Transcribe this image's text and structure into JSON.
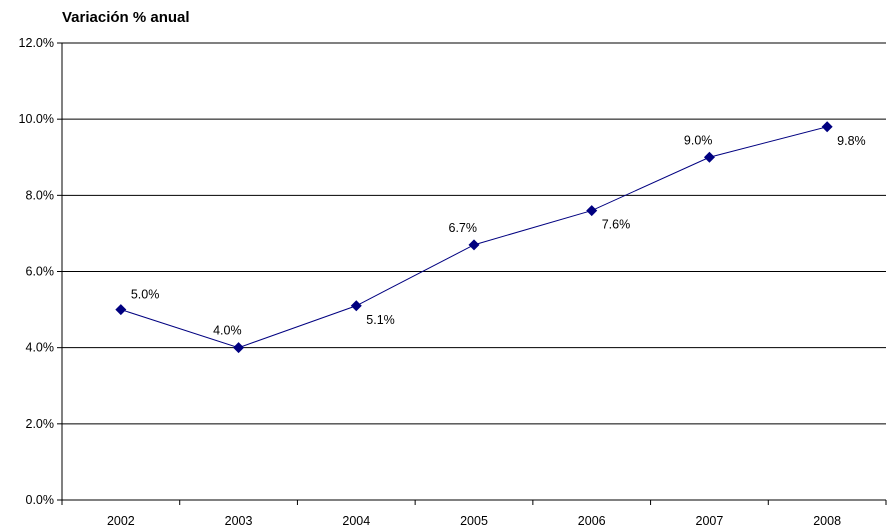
{
  "chart_data": {
    "type": "line",
    "title": "Variación % anual",
    "xlabel": "",
    "ylabel": "",
    "categories": [
      "2002",
      "2003",
      "2004",
      "2005",
      "2006",
      "2007",
      "2008"
    ],
    "series": [
      {
        "values": [
          5.0,
          4.0,
          5.1,
          6.7,
          7.6,
          9.0,
          9.8
        ],
        "labels": [
          "5.0%",
          "4.0%",
          "5.1%",
          "6.7%",
          "7.6%",
          "9.0%",
          "9.8%"
        ]
      }
    ],
    "ylim": [
      0,
      12
    ],
    "yticks": [
      0,
      2,
      4,
      6,
      8,
      10,
      12
    ],
    "ytick_labels": [
      "0.0%",
      "2.0%",
      "4.0%",
      "6.0%",
      "8.0%",
      "10.0%",
      "12.0%"
    ],
    "grid": true,
    "legend": "none",
    "marker": "diamond",
    "colors": {
      "series": "#000080",
      "grid": "#000000",
      "axis": "#000000"
    }
  }
}
